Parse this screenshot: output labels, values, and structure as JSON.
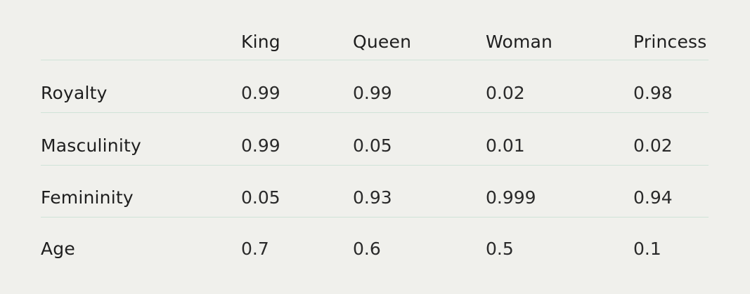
{
  "table": {
    "columns": [
      "King",
      "Queen",
      "Woman",
      "Princess"
    ],
    "rows": [
      [
        "Royalty",
        "0.99",
        "0.99",
        "0.02",
        "0.98"
      ],
      [
        "Masculinity",
        "0.99",
        "0.05",
        "0.01",
        "0.02"
      ],
      [
        "Femininity",
        "0.05",
        "0.93",
        "0.999",
        "0.94"
      ],
      [
        "Age",
        "0.7",
        "0.6",
        "0.5",
        "0.1"
      ]
    ]
  }
}
